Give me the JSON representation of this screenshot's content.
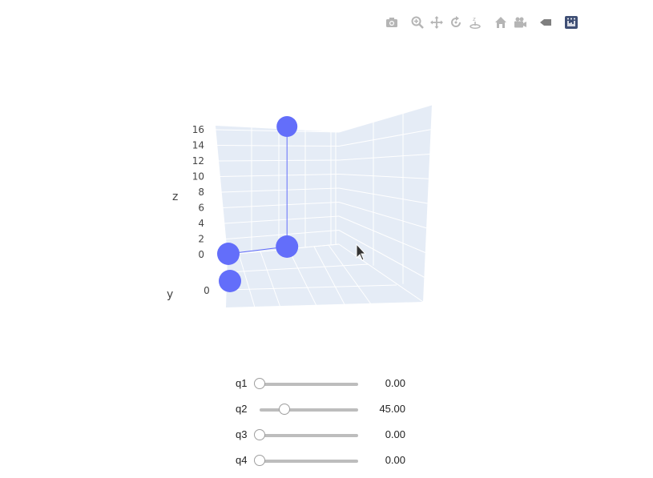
{
  "modebar": {
    "buttons": [
      {
        "name": "camera-icon",
        "title": "Download plot as a png"
      },
      {
        "name": "zoom-icon",
        "title": "Zoom"
      },
      {
        "name": "pan-icon",
        "title": "Pan"
      },
      {
        "name": "orbit-rotation-icon",
        "title": "Orbital rotation"
      },
      {
        "name": "turntable-rotation-icon",
        "title": "Turntable rotation"
      },
      {
        "name": "home-icon",
        "title": "Reset camera to default"
      },
      {
        "name": "camera-video-icon",
        "title": "Reset camera to last save"
      },
      {
        "name": "tag-icon",
        "title": "Toggle show closest data on hover"
      },
      {
        "name": "plotly-logo-icon",
        "title": "Produced with Plotly"
      }
    ]
  },
  "chart_data": {
    "type": "scatter3d",
    "mode": "lines+markers",
    "marker_color": "#636efa",
    "line_color": "#636efa",
    "points": [
      {
        "x": 0,
        "y": 0,
        "z": 0
      },
      {
        "x": 0,
        "y": 0,
        "z": 0
      },
      {
        "x": 12,
        "y": 0,
        "z": 0
      },
      {
        "x": 12,
        "y": 0,
        "z": 16
      }
    ],
    "axes": {
      "z": {
        "title": "z",
        "ticks": [
          "0",
          "2",
          "4",
          "6",
          "8",
          "10",
          "12",
          "14",
          "16"
        ],
        "range": [
          0,
          16
        ]
      },
      "y": {
        "title": "y",
        "ticks": [
          "0"
        ]
      }
    },
    "scene_bg": "#e5ecf6",
    "grid_color": "#ffffff"
  },
  "sliders": [
    {
      "label": "q1",
      "value": "0.00",
      "fraction": 0.0
    },
    {
      "label": "q2",
      "value": "45.00",
      "fraction": 0.25
    },
    {
      "label": "q3",
      "value": "0.00",
      "fraction": 0.0
    },
    {
      "label": "q4",
      "value": "0.00",
      "fraction": 0.0
    }
  ]
}
